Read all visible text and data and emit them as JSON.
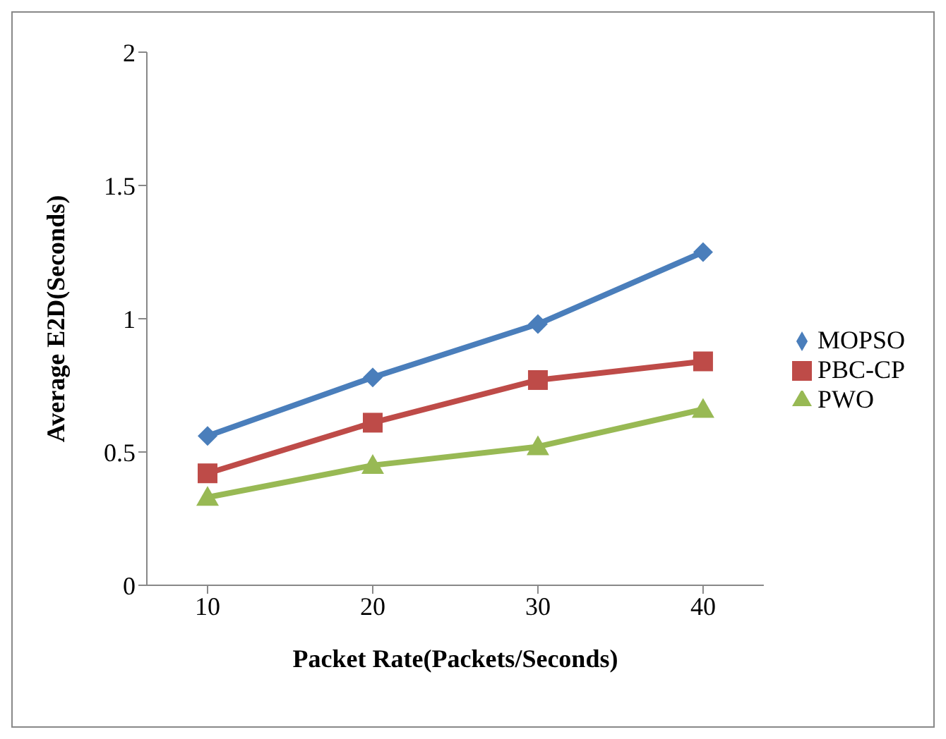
{
  "chart_data": {
    "type": "line",
    "xlabel": "Packet Rate(Packets/Seconds)",
    "ylabel": "Average E2D(Seconds)",
    "categories": [
      "10",
      "20",
      "30",
      "40"
    ],
    "series": [
      {
        "name": "MOPSO",
        "color": "#4a7ebb",
        "marker": "diamond",
        "values": [
          0.56,
          0.78,
          0.98,
          1.25
        ]
      },
      {
        "name": "PBC-CP",
        "color": "#be4b48",
        "marker": "square",
        "values": [
          0.42,
          0.61,
          0.77,
          0.84
        ]
      },
      {
        "name": "PWO",
        "color": "#98b954",
        "marker": "triangle",
        "values": [
          0.33,
          0.45,
          0.52,
          0.66
        ]
      }
    ],
    "ylim": [
      0,
      2
    ],
    "yticks": [
      0,
      0.5,
      1,
      1.5,
      2
    ],
    "grid": false,
    "legend": "right"
  }
}
